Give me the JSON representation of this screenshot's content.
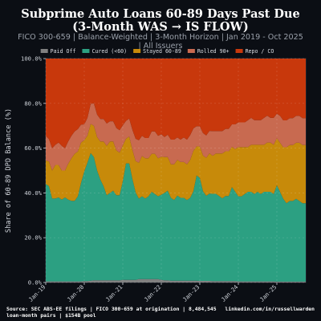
{
  "header": {
    "title_line1": "Subprime Auto Loans 60-89 Days Past Due",
    "title_line2": "(3-Month WAS → IS FLOW)",
    "subtitle_line1": "FICO 300-659 | Balance-Weighted | 3-Month Horizon | Jan 2019 - Oct 2025",
    "subtitle_line2": "| All Issuers"
  },
  "footer": {
    "source_line1": "Source: SEC ABS-EE filings | FICO 300-659 at origination | 8,484,545",
    "source_line2": "loan-month pairs | $154B pool",
    "credit": "linkedin.com/in/russellwarden"
  },
  "chart_data": {
    "type": "area",
    "stacked": true,
    "ylabel": "Share of 60-89 DPD Balance (%)",
    "xlabel": "",
    "ylim": [
      0,
      100
    ],
    "yticks": [
      0,
      20,
      40,
      60,
      80,
      100
    ],
    "ytick_labels": [
      "0.0%",
      "20.0%",
      "40.0%",
      "60.0%",
      "80.0%",
      "100.0%"
    ],
    "xticks": [
      "2019-01",
      "2020-01",
      "2021-01",
      "2022-01",
      "2023-01",
      "2024-01",
      "2025-01"
    ],
    "xtick_labels": [
      "Jan-19",
      "Jan-20",
      "Jan-21",
      "Jan-22",
      "Jan-23",
      "Jan-24",
      "Jan-25"
    ],
    "xlim": [
      "2019-01",
      "2025-10"
    ],
    "grid": true,
    "legend_position": "top",
    "x": [
      "2019-01",
      "2019-02",
      "2019-03",
      "2019-04",
      "2019-05",
      "2019-06",
      "2019-07",
      "2019-08",
      "2019-09",
      "2019-10",
      "2019-11",
      "2019-12",
      "2020-01",
      "2020-02",
      "2020-03",
      "2020-04",
      "2020-05",
      "2020-06",
      "2020-07",
      "2020-08",
      "2020-09",
      "2020-10",
      "2020-11",
      "2020-12",
      "2021-01",
      "2021-02",
      "2021-03",
      "2021-04",
      "2021-05",
      "2021-06",
      "2021-07",
      "2021-08",
      "2021-09",
      "2021-10",
      "2021-11",
      "2021-12",
      "2022-01",
      "2022-02",
      "2022-03",
      "2022-04",
      "2022-05",
      "2022-06",
      "2022-07",
      "2022-08",
      "2022-09",
      "2022-10",
      "2022-11",
      "2022-12",
      "2023-01",
      "2023-02",
      "2023-03",
      "2023-04",
      "2023-05",
      "2023-06",
      "2023-07",
      "2023-08",
      "2023-09",
      "2023-10",
      "2023-11",
      "2023-12",
      "2024-01",
      "2024-02",
      "2024-03",
      "2024-04",
      "2024-05",
      "2024-06",
      "2024-07",
      "2024-08",
      "2024-09",
      "2024-10",
      "2024-11",
      "2024-12",
      "2025-01",
      "2025-02",
      "2025-03",
      "2025-04",
      "2025-05",
      "2025-06",
      "2025-07",
      "2025-08",
      "2025-09",
      "2025-10"
    ],
    "series": [
      {
        "name": "Paid Off",
        "color": "#808080",
        "values": [
          0.5,
          0.5,
          0.5,
          0.5,
          0.5,
          0.5,
          0.5,
          0.5,
          0.5,
          0.5,
          0.5,
          0.5,
          0.6,
          0.6,
          0.8,
          1.0,
          1.0,
          1.0,
          1.0,
          1.0,
          1.0,
          1.0,
          1.0,
          1.0,
          1.2,
          1.2,
          1.2,
          1.2,
          1.2,
          1.5,
          1.5,
          1.5,
          1.5,
          1.5,
          1.5,
          1.5,
          1.2,
          1.0,
          1.0,
          0.8,
          0.8,
          0.8,
          0.8,
          0.8,
          0.8,
          0.8,
          0.8,
          0.8,
          0.7,
          0.7,
          0.7,
          0.7,
          0.6,
          0.6,
          0.6,
          0.6,
          0.6,
          0.6,
          0.6,
          0.6,
          0.5,
          0.5,
          0.5,
          0.5,
          0.5,
          0.5,
          0.5,
          0.5,
          0.5,
          0.5,
          0.5,
          0.5,
          0.4,
          0.4,
          0.4,
          0.4,
          0.4,
          0.4,
          0.4,
          0.4,
          0.4,
          0.4
        ]
      },
      {
        "name": "Cured (<60)",
        "color": "#2ca082",
        "values": [
          43.5,
          42.5,
          37,
          37,
          37.5,
          36.5,
          37.5,
          36.5,
          36,
          36,
          38,
          44,
          49,
          53,
          57,
          55,
          49,
          45,
          42,
          38,
          39,
          40,
          38,
          38,
          44,
          52,
          52,
          45,
          39,
          36,
          37,
          36,
          37,
          39,
          38,
          37,
          38,
          39,
          40,
          37,
          36,
          38,
          37,
          37,
          36,
          37,
          40,
          47,
          46,
          40,
          38,
          39,
          39,
          39,
          38,
          37,
          38,
          38,
          42,
          40,
          38,
          38,
          39,
          40,
          40,
          39,
          40,
          39,
          40,
          40,
          40,
          39,
          43,
          40,
          37,
          35,
          36,
          36,
          37,
          36,
          35,
          35
        ]
      },
      {
        "name": "Stayed 60-89",
        "color": "#c78a0a",
        "values": [
          10.5,
          11,
          12.5,
          15,
          14.5,
          13,
          12,
          16,
          19,
          21,
          20,
          18,
          14,
          12,
          13,
          14,
          15,
          17,
          20,
          22,
          23,
          22,
          20,
          19,
          16,
          11,
          12,
          13,
          14,
          16,
          18,
          18,
          17,
          17,
          18,
          17,
          17,
          16,
          15,
          15,
          16,
          16,
          16,
          16,
          16,
          17,
          18,
          13,
          14,
          16,
          17,
          18,
          17,
          18,
          19,
          20,
          20,
          20,
          18,
          19,
          22,
          22,
          21,
          20,
          21,
          22,
          21,
          22,
          21,
          22,
          22,
          22,
          21,
          22,
          23,
          25,
          25,
          25,
          25,
          26,
          26,
          26
        ]
      },
      {
        "name": "Rolled 90+",
        "color": "#c86a50",
        "values": [
          11,
          10,
          10,
          9,
          10,
          11,
          10,
          10,
          10,
          10,
          10,
          8,
          7,
          8,
          9,
          10,
          10,
          10,
          10,
          10,
          9,
          9,
          10,
          10,
          9,
          8,
          8,
          9,
          10,
          10,
          9,
          9,
          9,
          10,
          10,
          10,
          10,
          9,
          10,
          11,
          11,
          10,
          10,
          11,
          11,
          11,
          10,
          9,
          9,
          10,
          10,
          10,
          11,
          10,
          10,
          10,
          10,
          10,
          10,
          11,
          11,
          11,
          11,
          12,
          12,
          11,
          11,
          11,
          12,
          12,
          11,
          12,
          11,
          12,
          12,
          12,
          12,
          12,
          12,
          12,
          12,
          12
        ]
      },
      {
        "name": "Repo / CO",
        "color": "#c8380c",
        "values": [
          34.5,
          36,
          40,
          38.5,
          37.5,
          39,
          40,
          37,
          34.5,
          32.5,
          31.5,
          29.5,
          29.4,
          26.4,
          20.2,
          20,
          25,
          27,
          27,
          29,
          28,
          28,
          31,
          32,
          29.8,
          27.8,
          26.8,
          31.8,
          35.8,
          36.5,
          34.5,
          35.5,
          35.5,
          32.5,
          32.5,
          34.5,
          33.8,
          35,
          34,
          36.2,
          36.2,
          35.2,
          36.2,
          35.2,
          36.2,
          34.2,
          31.2,
          30.2,
          30.3,
          33.3,
          34.3,
          32.3,
          32.4,
          32.4,
          32.4,
          32.4,
          31.4,
          31.4,
          29.4,
          29.4,
          28.5,
          28.5,
          28.5,
          27.5,
          26.5,
          27.5,
          27.5,
          27.5,
          26.5,
          25.5,
          26.5,
          26.5,
          24.6,
          25.6,
          27.6,
          27.6,
          26.6,
          26.6,
          25.6,
          25.6,
          26.6,
          26.6
        ]
      }
    ]
  }
}
